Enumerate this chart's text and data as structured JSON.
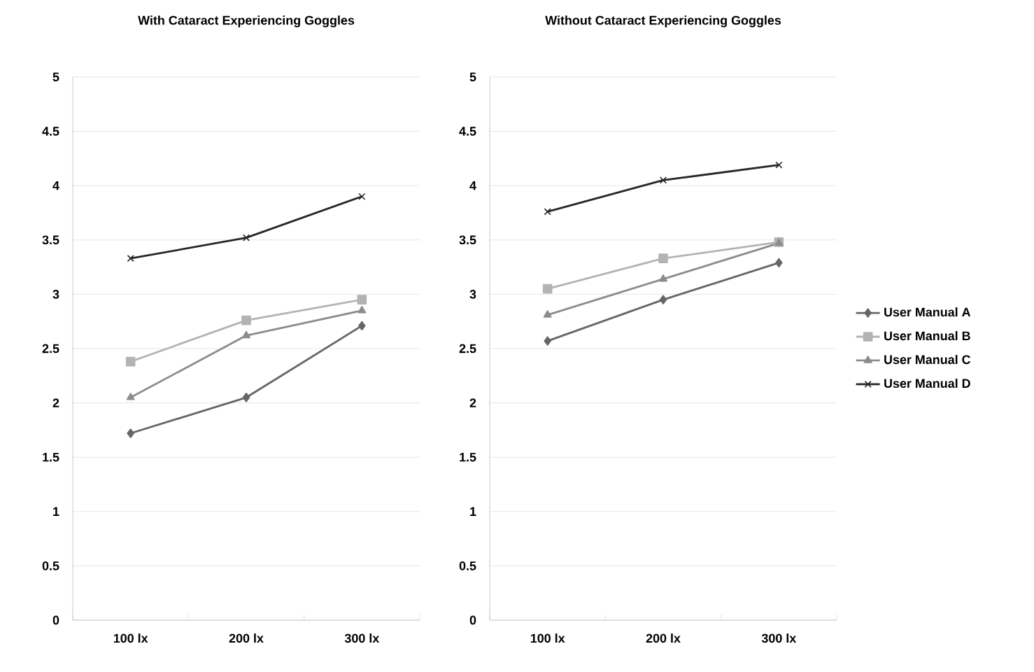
{
  "chart_data": [
    {
      "type": "line",
      "title": "With Cataract Experiencing Goggles",
      "categories": [
        "100 lx",
        "200 lx",
        "300 lx"
      ],
      "series": [
        {
          "color": "#666666",
          "marker": "diamond",
          "values": [
            1.72,
            2.05,
            2.71
          ]
        },
        {
          "color": "#b3b3b3",
          "marker": "square",
          "values": [
            2.38,
            2.76,
            2.95
          ]
        },
        {
          "color": "#8c8c8c",
          "marker": "triangle",
          "values": [
            2.05,
            2.62,
            2.85
          ]
        },
        {
          "color": "#262626",
          "marker": "cross",
          "values": [
            3.33,
            3.52,
            3.9
          ]
        }
      ],
      "ylim": [
        0,
        5
      ],
      "yticks": [
        0,
        0.5,
        1,
        1.5,
        2,
        2.5,
        3,
        3.5,
        4,
        4.5,
        5
      ],
      "grid": "y",
      "line_style": "solid"
    },
    {
      "type": "line",
      "title": "Without Cataract Experiencing Goggles",
      "categories": [
        "100 lx",
        "200 lx",
        "300 lx"
      ],
      "series": [
        {
          "name": "User Manual A",
          "color": "#666666",
          "marker": "diamond",
          "values": [
            2.57,
            2.95,
            3.29
          ]
        },
        {
          "name": "User Manual B",
          "color": "#b3b3b3",
          "marker": "square",
          "values": [
            3.05,
            3.33,
            3.48
          ]
        },
        {
          "name": "User Manual C",
          "color": "#8c8c8c",
          "marker": "triangle",
          "values": [
            2.81,
            3.14,
            3.47
          ]
        },
        {
          "name": "User Manual D",
          "color": "#262626",
          "marker": "cross",
          "values": [
            3.76,
            4.05,
            4.19
          ]
        }
      ],
      "ylim": [
        0,
        5
      ],
      "yticks": [
        0,
        0.5,
        1,
        1.5,
        2,
        2.5,
        3,
        3.5,
        4,
        4.5,
        5
      ],
      "grid": "y",
      "legend": "right",
      "line_style": "solid"
    }
  ]
}
